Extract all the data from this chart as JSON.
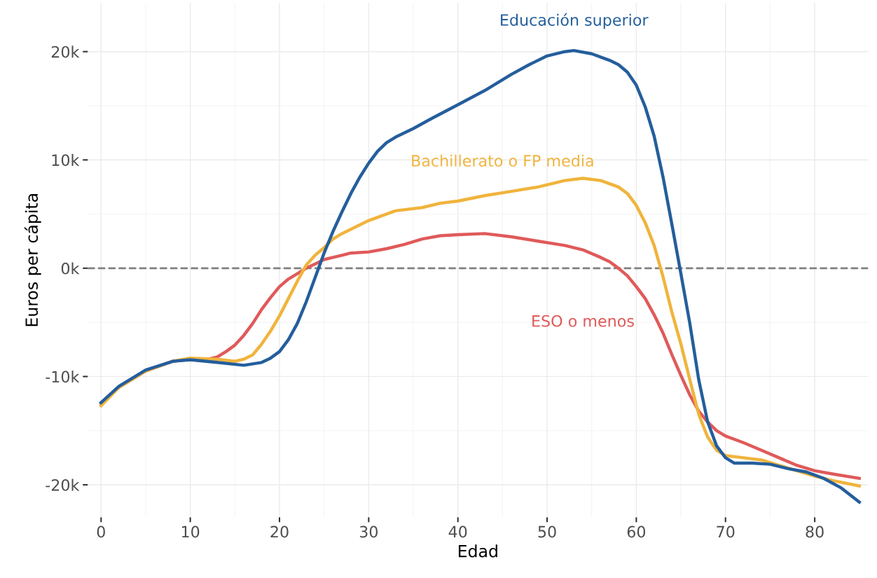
{
  "chart_data": {
    "type": "line",
    "xlabel": "Edad",
    "ylabel": "Euros per cápita",
    "xlim": [
      -1.5,
      86
    ],
    "xticks": [
      0,
      10,
      20,
      30,
      40,
      50,
      60,
      70,
      80
    ],
    "ylim": [
      -23,
      24.5
    ],
    "yticks": [
      {
        "value": -20,
        "label": "-20k"
      },
      {
        "value": -10,
        "label": "-10k"
      },
      {
        "value": 0,
        "label": "0k"
      },
      {
        "value": 10,
        "label": "10k"
      },
      {
        "value": 20,
        "label": "20k"
      }
    ],
    "grid": true,
    "legend": false,
    "line_style": "solid",
    "marker": "none",
    "ref_lines": [
      {
        "axis": "y",
        "value": 0,
        "color": "#808080",
        "line_style": "dashed"
      }
    ],
    "series": [
      {
        "name": "ESO o menos",
        "color": "#e05a5a",
        "x": [
          0,
          2,
          5,
          8,
          10,
          12,
          13,
          14,
          15,
          16,
          17,
          18,
          19,
          20,
          21,
          22,
          23,
          24,
          25,
          26,
          27,
          28,
          30,
          32,
          34,
          36,
          38,
          40,
          43,
          46,
          49,
          52,
          54,
          56,
          57,
          58,
          59,
          60,
          61,
          62,
          63,
          64,
          65,
          66,
          67,
          68,
          69,
          70,
          72,
          74,
          76,
          78,
          80,
          82,
          85
        ],
        "values": [
          -12.5,
          -11.0,
          -9.5,
          -8.6,
          -8.4,
          -8.4,
          -8.2,
          -7.7,
          -7.1,
          -6.2,
          -5.1,
          -3.8,
          -2.7,
          -1.7,
          -1.0,
          -0.5,
          0.0,
          0.4,
          0.8,
          1.0,
          1.2,
          1.4,
          1.5,
          1.8,
          2.2,
          2.7,
          3.0,
          3.1,
          3.2,
          2.9,
          2.5,
          2.1,
          1.7,
          1.0,
          0.6,
          0.0,
          -0.7,
          -1.7,
          -2.8,
          -4.3,
          -6.0,
          -8.0,
          -9.9,
          -11.7,
          -13.2,
          -14.2,
          -15.0,
          -15.5,
          -16.1,
          -16.8,
          -17.5,
          -18.2,
          -18.7,
          -19.0,
          -19.4
        ]
      },
      {
        "name": "Bachillerato o FP media",
        "color": "#f0b43c",
        "x": [
          0,
          2,
          5,
          8,
          10,
          13,
          15,
          16,
          17,
          18,
          19,
          20,
          21,
          22,
          23,
          24,
          25,
          26,
          27,
          28,
          30,
          33,
          36,
          38,
          40,
          43,
          46,
          49,
          52,
          54,
          56,
          58,
          59,
          60,
          61,
          62,
          63,
          64,
          65,
          66,
          67,
          68,
          69,
          70,
          72,
          74,
          76,
          78,
          80,
          82,
          85
        ],
        "values": [
          -12.7,
          -11.0,
          -9.5,
          -8.6,
          -8.3,
          -8.4,
          -8.6,
          -8.4,
          -8.0,
          -7.0,
          -5.8,
          -4.4,
          -2.8,
          -1.2,
          0.3,
          1.2,
          1.9,
          2.7,
          3.2,
          3.6,
          4.4,
          5.3,
          5.6,
          6.0,
          6.2,
          6.7,
          7.1,
          7.5,
          8.1,
          8.3,
          8.1,
          7.5,
          6.9,
          5.8,
          4.2,
          2.1,
          -0.8,
          -4.1,
          -7.0,
          -10.3,
          -13.5,
          -15.6,
          -16.8,
          -17.3,
          -17.5,
          -17.7,
          -18.2,
          -18.7,
          -19.2,
          -19.6,
          -20.1
        ]
      },
      {
        "name": "Educación superior",
        "color": "#245e9c",
        "x": [
          0,
          2,
          5,
          8,
          10,
          13,
          16,
          18,
          19,
          20,
          21,
          22,
          23,
          24,
          25,
          26,
          27,
          28,
          29,
          30,
          31,
          32,
          33,
          35,
          37,
          40,
          43,
          46,
          48,
          50,
          52,
          53,
          55,
          57,
          58,
          59,
          60,
          61,
          62,
          63,
          64,
          65,
          66,
          67,
          68,
          69,
          70,
          71,
          73,
          75,
          77,
          79,
          81,
          83,
          85
        ],
        "values": [
          -12.4,
          -10.9,
          -9.4,
          -8.6,
          -8.45,
          -8.7,
          -8.96,
          -8.7,
          -8.3,
          -7.7,
          -6.6,
          -5.1,
          -3.1,
          -0.85,
          1.4,
          3.4,
          5.2,
          6.9,
          8.4,
          9.7,
          10.8,
          11.6,
          12.1,
          12.9,
          13.8,
          15.1,
          16.4,
          17.9,
          18.8,
          19.6,
          20.0,
          20.1,
          19.8,
          19.2,
          18.8,
          18.1,
          16.9,
          14.9,
          12.2,
          8.4,
          4.0,
          -0.5,
          -5.1,
          -10.3,
          -14.2,
          -16.4,
          -17.5,
          -18.0,
          -18.0,
          -18.1,
          -18.5,
          -18.8,
          -19.4,
          -20.3,
          -21.6
        ]
      }
    ]
  }
}
